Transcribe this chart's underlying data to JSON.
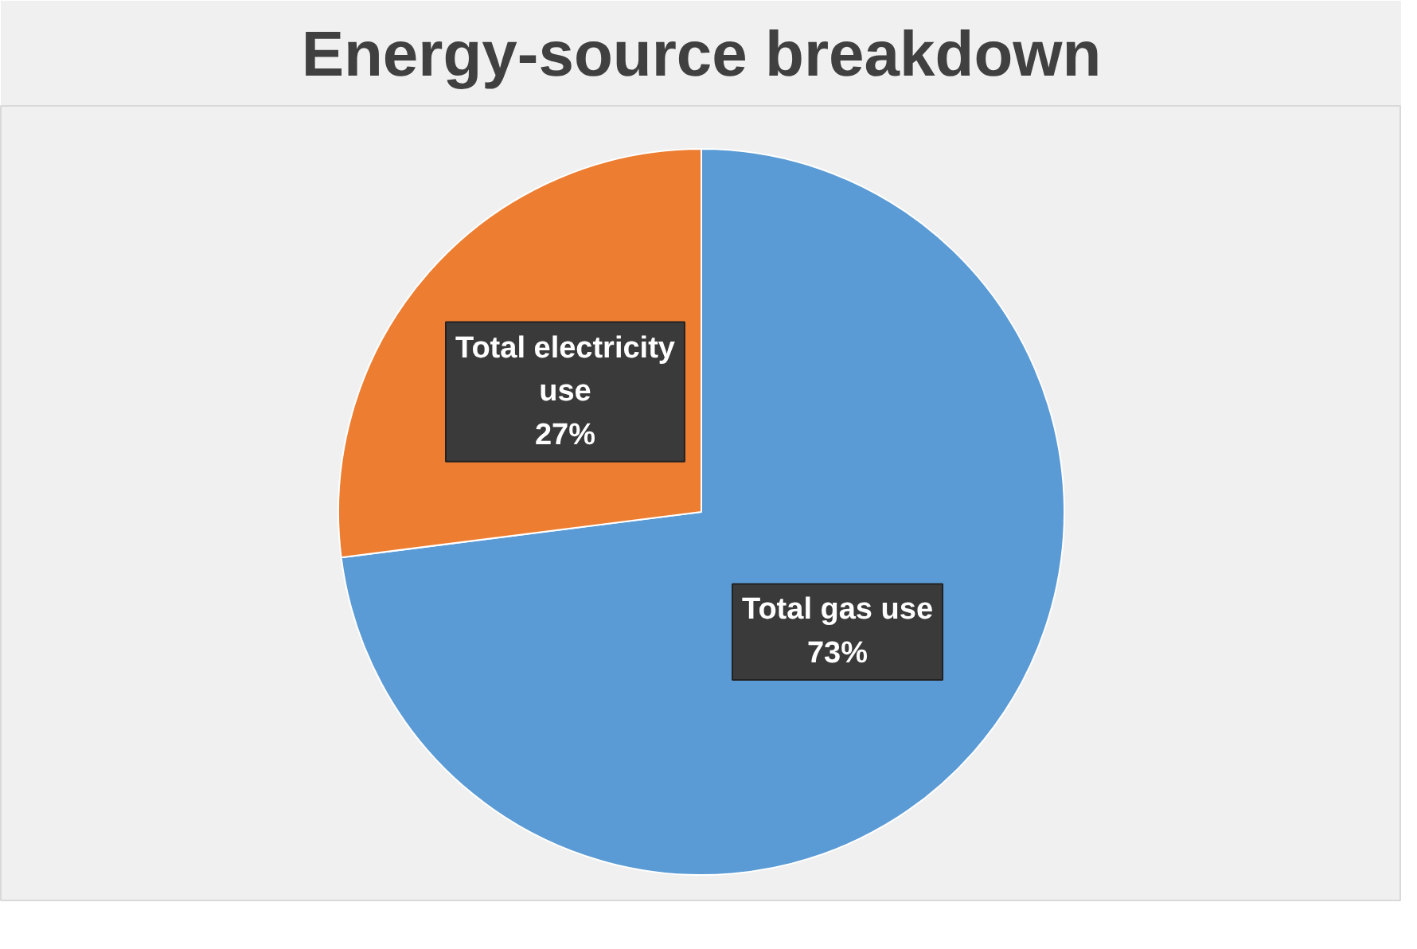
{
  "chart_data": {
    "type": "pie",
    "title": "Energy-source breakdown",
    "categories": [
      "Total gas use",
      "Total electricity use"
    ],
    "values": [
      73,
      27
    ],
    "colors": [
      "#5b9bd5",
      "#ed7d31"
    ],
    "value_labels": [
      "73%",
      "27%"
    ],
    "legend": false
  }
}
